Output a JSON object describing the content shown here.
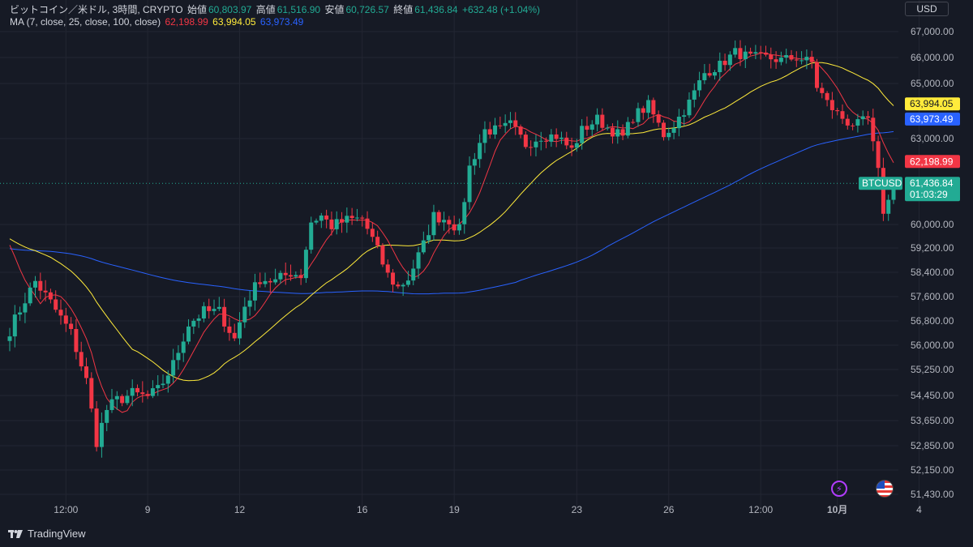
{
  "header": {
    "symbol_desc": "ビットコイン／米ドル, 3時間, CRYPTO",
    "open_label": "始値",
    "open_value": "60,803.97",
    "high_label": "高値",
    "high_value": "61,516.90",
    "low_label": "安値",
    "low_value": "60,726.57",
    "close_label": "終値",
    "close_value": "61,436.84",
    "change": "+632.48 (+1.04%)",
    "ma_label": "MA (7, close, 25, close, 100, close)",
    "ma7_value": "62,198.99",
    "ma25_value": "63,994.05",
    "ma100_value": "63,973.49"
  },
  "currency": "USD",
  "footer": {
    "brand": "TradingView"
  },
  "icons": {
    "alert": "lightning-icon",
    "region": "us-flag-icon"
  },
  "colors": {
    "background": "#161a25",
    "up": "#22ab94",
    "down": "#f23645",
    "ma7": "#f23645",
    "ma25": "#ffeb3b",
    "ma100": "#2962ff",
    "grid": "#232632"
  },
  "chart_data": {
    "type": "candlestick",
    "y_ticks": [
      "67,000.00",
      "66,000.00",
      "65,000.00",
      "63,000.00",
      "60,000.00",
      "59,200.00",
      "58,400.00",
      "57,600.00",
      "56,800.00",
      "56,000.00",
      "55,250.00",
      "54,450.00",
      "53,650.00",
      "52,850.00",
      "52,150.00",
      "51,430.00"
    ],
    "y_tick_values": [
      67000,
      66000,
      65000,
      63000,
      60000,
      59200,
      58400,
      57600,
      56800,
      56000,
      55250,
      54450,
      53650,
      52850,
      52150,
      51430
    ],
    "x_ticks": [
      "12:00",
      "9",
      "12",
      "16",
      "19",
      "23",
      "26",
      "12:00",
      "10月",
      "4"
    ],
    "x_tick_index": [
      11,
      27,
      45,
      69,
      87,
      111,
      129,
      147,
      162,
      178
    ],
    "x_tick_bold": [
      false,
      false,
      false,
      false,
      false,
      false,
      false,
      false,
      true,
      false
    ],
    "n_bars": 180,
    "anchors": [
      [
        0,
        56500
      ],
      [
        3,
        57500
      ],
      [
        5,
        58100
      ],
      [
        8,
        57400
      ],
      [
        12,
        56400
      ],
      [
        15,
        54900
      ],
      [
        17,
        53000
      ],
      [
        19,
        54000
      ],
      [
        21,
        54300
      ],
      [
        24,
        54500
      ],
      [
        27,
        54400
      ],
      [
        29,
        54600
      ],
      [
        32,
        55400
      ],
      [
        35,
        56700
      ],
      [
        38,
        57100
      ],
      [
        41,
        57100
      ],
      [
        44,
        56200
      ],
      [
        46,
        57300
      ],
      [
        49,
        58200
      ],
      [
        52,
        58100
      ],
      [
        55,
        58400
      ],
      [
        57,
        58300
      ],
      [
        59,
        60100
      ],
      [
        61,
        60300
      ],
      [
        63,
        59950
      ],
      [
        66,
        60150
      ],
      [
        69,
        60200
      ],
      [
        71,
        59500
      ],
      [
        74,
        58300
      ],
      [
        76,
        57900
      ],
      [
        78,
        58200
      ],
      [
        81,
        59300
      ],
      [
        83,
        60300
      ],
      [
        86,
        60150
      ],
      [
        88,
        59800
      ],
      [
        90,
        62000
      ],
      [
        93,
        63300
      ],
      [
        96,
        63300
      ],
      [
        98,
        63500
      ],
      [
        101,
        62800
      ],
      [
        104,
        63100
      ],
      [
        107,
        63100
      ],
      [
        110,
        62600
      ],
      [
        112,
        63300
      ],
      [
        115,
        63700
      ],
      [
        117,
        63400
      ],
      [
        120,
        63050
      ],
      [
        122,
        63800
      ],
      [
        125,
        64200
      ],
      [
        128,
        63150
      ],
      [
        130,
        63500
      ],
      [
        133,
        64300
      ],
      [
        136,
        65400
      ],
      [
        139,
        65700
      ],
      [
        142,
        66200
      ],
      [
        145,
        66000
      ],
      [
        148,
        66000
      ],
      [
        151,
        65900
      ],
      [
        154,
        66000
      ],
      [
        157,
        65800
      ],
      [
        158,
        64900
      ],
      [
        160,
        64300
      ],
      [
        162,
        63900
      ],
      [
        164,
        63600
      ],
      [
        166,
        63500
      ],
      [
        168,
        63700
      ],
      [
        170,
        61800
      ],
      [
        171,
        60500
      ],
      [
        172,
        60800
      ],
      [
        173,
        61437
      ]
    ],
    "last_price": 61436.84,
    "last_label": "BTCUSD",
    "last_value": "61,436.84",
    "countdown": "01:03:29",
    "series": [
      {
        "name": "MA7",
        "value": 62198.99,
        "label": "62,198.99"
      },
      {
        "name": "MA25",
        "value": 63994.05,
        "label": "63,994.05"
      },
      {
        "name": "MA100",
        "value": 63973.49,
        "label": "63,973.49"
      }
    ]
  }
}
